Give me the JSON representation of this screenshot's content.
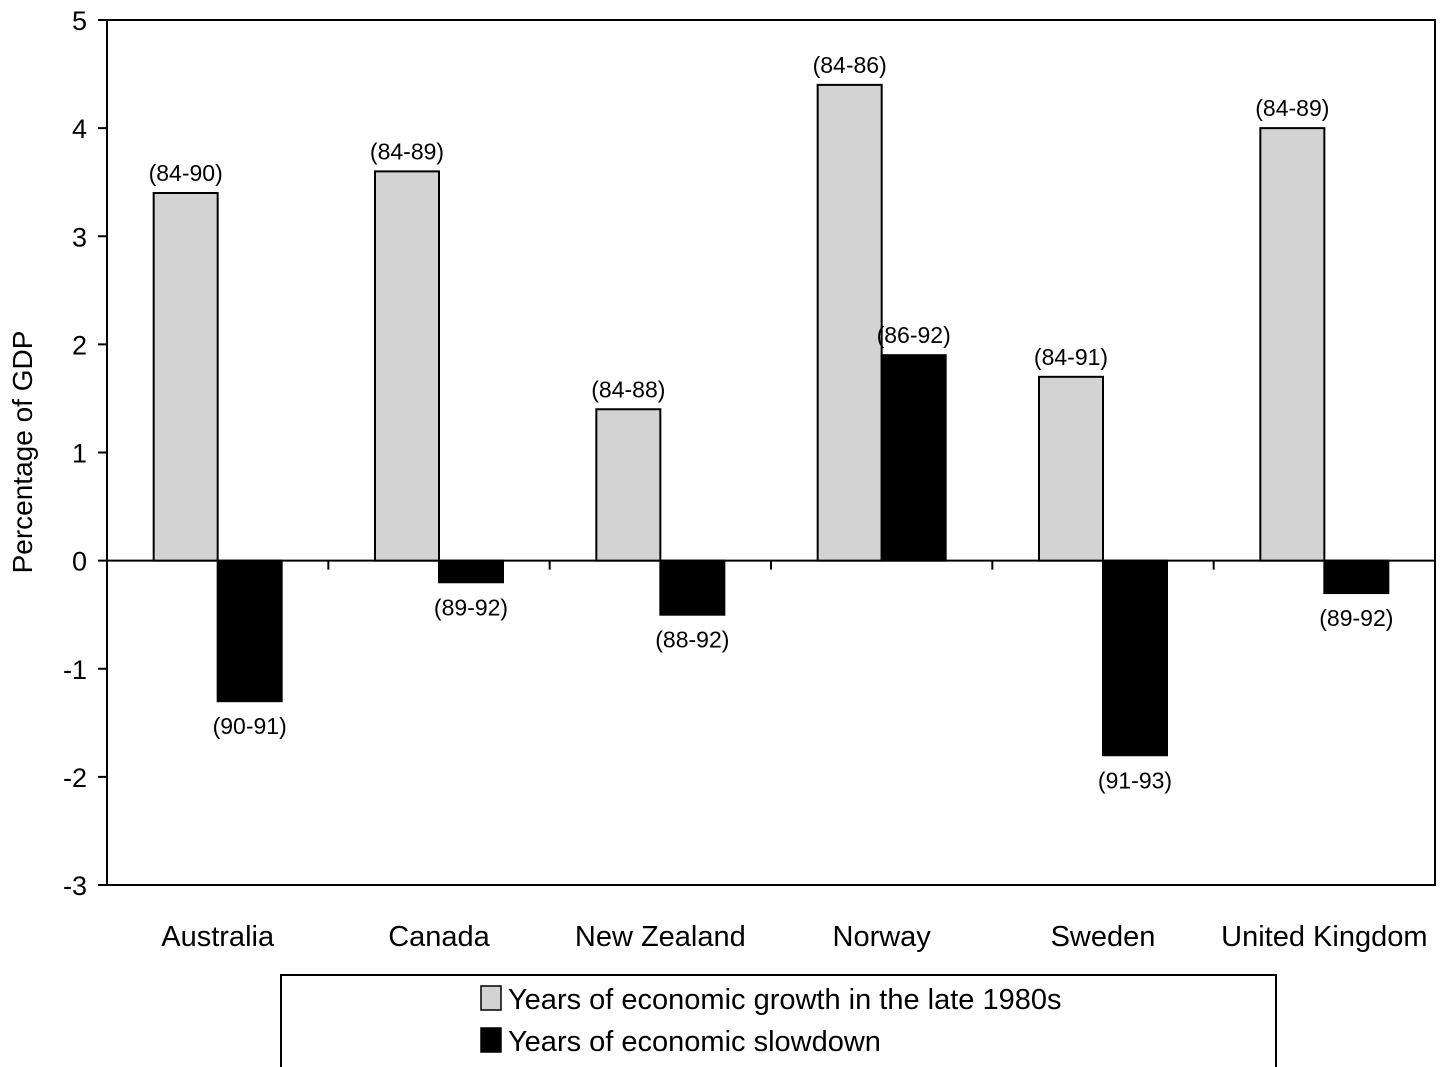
{
  "chart_data": {
    "type": "bar",
    "title": "",
    "xlabel": "",
    "ylabel": "Percentage of GDP",
    "ylim": [
      -3,
      5
    ],
    "yticks": [
      5,
      4,
      3,
      2,
      1,
      0,
      -1,
      -2,
      -3
    ],
    "grid": false,
    "legend_position": "bottom",
    "categories": [
      "Australia",
      "Canada",
      "New Zealand",
      "Norway",
      "Sweden",
      "United Kingdom"
    ],
    "series": [
      {
        "name": "Years of economic growth in the late 1980s",
        "color": "#d3d3d3",
        "values": [
          3.4,
          3.6,
          1.4,
          4.4,
          1.7,
          4.0
        ],
        "labels": [
          "(84-90)",
          "(84-89)",
          "(84-88)",
          "(84-86)",
          "(84-91)",
          "(84-89)"
        ]
      },
      {
        "name": "Years of economic slowdown",
        "color": "#000000",
        "values": [
          -1.3,
          -0.2,
          -0.5,
          1.9,
          -1.8,
          -0.3
        ],
        "labels": [
          "(90-91)",
          "(89-92)",
          "(88-92)",
          "(86-92)",
          "(91-93)",
          "(89-92)"
        ]
      }
    ]
  }
}
